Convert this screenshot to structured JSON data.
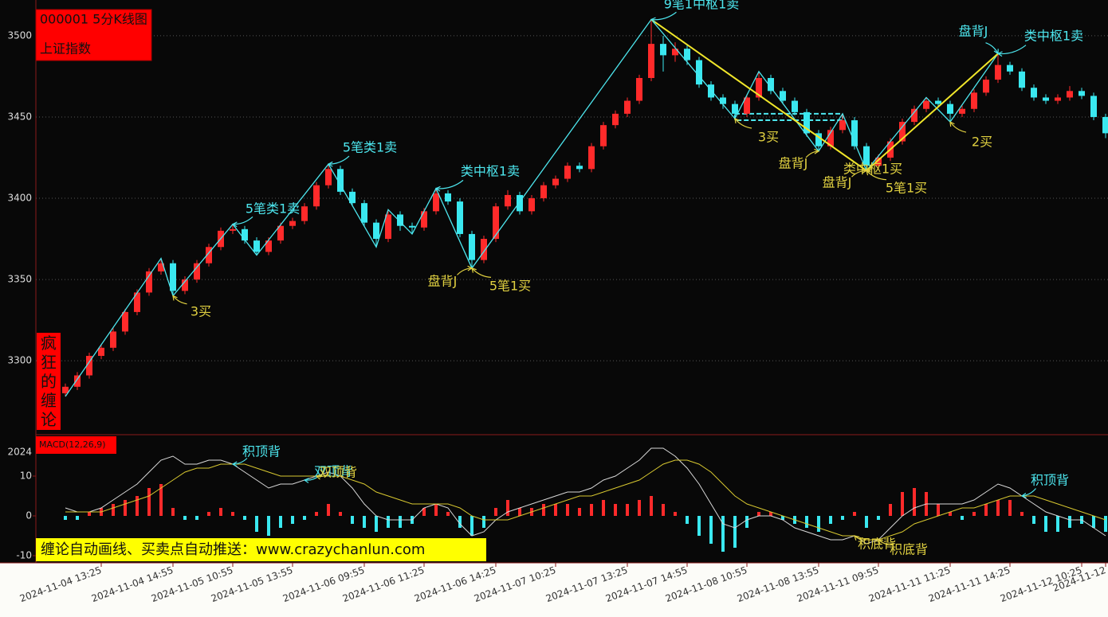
{
  "chart_data": [
    {
      "type": "candlestick",
      "title": "000001 5分K线图",
      "subtitle": "上证指数",
      "side_label": "疯狂的缠论",
      "categories": [
        null,
        null,
        null,
        "2024-11-04 13:25",
        null,
        null,
        null,
        null,
        null,
        "2024-11-04 14:55",
        null,
        null,
        null,
        null,
        "2024-11-05 10:55",
        null,
        null,
        null,
        null,
        "2024-11-05 13:55",
        null,
        null,
        null,
        null,
        null,
        "2024-11-06 09:55",
        null,
        null,
        null,
        null,
        "2024-11-06 11:25",
        null,
        null,
        null,
        null,
        null,
        "2024-11-06 14:25",
        null,
        null,
        null,
        null,
        "2024-11-07 10:25",
        null,
        null,
        null,
        null,
        null,
        "2024-11-07 13:25",
        null,
        null,
        null,
        null,
        "2024-11-07 14:55",
        null,
        null,
        null,
        null,
        "2024-11-08 10:55",
        null,
        null,
        null,
        null,
        null,
        "2024-11-08 13:55",
        null,
        null,
        null,
        null,
        "2024-11-11 09:55",
        null,
        null,
        null,
        null,
        null,
        "2024-11-11 11:25",
        null,
        null,
        null,
        null,
        "2024-11-11 14:25",
        null,
        null,
        null,
        null,
        null,
        "2024-11-12 10:25",
        null,
        "2024-11-12"
      ],
      "open": [
        3280,
        3284,
        3291,
        3303,
        3308,
        3318,
        3330,
        3342,
        3355,
        3360,
        3343,
        3350,
        3360,
        3370,
        3380,
        3381,
        3374,
        3367,
        3374,
        3383,
        3386,
        3395,
        3408,
        3418,
        3404,
        3397,
        3385,
        3375,
        3390,
        3383,
        3382,
        3392,
        3403,
        3398,
        3378,
        3362,
        3375,
        3395,
        3402,
        3392,
        3400,
        3408,
        3412,
        3420,
        3418,
        3432,
        3445,
        3452,
        3460,
        3474,
        3495,
        3488,
        3492,
        3485,
        3470,
        3462,
        3458,
        3452,
        3462,
        3474,
        3466,
        3460,
        3453,
        3440,
        3432,
        3442,
        3448,
        3432,
        3420,
        3425,
        3435,
        3447,
        3455,
        3460,
        3458,
        3452,
        3455,
        3465,
        3473,
        3482,
        3478,
        3468,
        3462,
        3460,
        3462,
        3466,
        3463,
        3450
      ],
      "high": [
        3286,
        3293,
        3305,
        3310,
        3320,
        3332,
        3344,
        3357,
        3363,
        3362,
        3352,
        3362,
        3372,
        3382,
        3384,
        3383,
        3376,
        3376,
        3385,
        3388,
        3397,
        3410,
        3421,
        3420,
        3406,
        3399,
        3387,
        3393,
        3392,
        3385,
        3394,
        3406,
        3405,
        3400,
        3380,
        3377,
        3397,
        3405,
        3404,
        3402,
        3410,
        3414,
        3422,
        3422,
        3434,
        3447,
        3454,
        3462,
        3476,
        3510,
        3500,
        3496,
        3494,
        3487,
        3472,
        3464,
        3460,
        3464,
        3478,
        3476,
        3468,
        3462,
        3455,
        3442,
        3444,
        3452,
        3450,
        3434,
        3427,
        3437,
        3449,
        3457,
        3462,
        3462,
        3460,
        3457,
        3467,
        3475,
        3489,
        3484,
        3480,
        3470,
        3464,
        3464,
        3469,
        3468,
        3465,
        3452
      ],
      "low": [
        3278,
        3282,
        3289,
        3301,
        3306,
        3316,
        3328,
        3340,
        3353,
        3340,
        3341,
        3348,
        3358,
        3368,
        3378,
        3372,
        3365,
        3365,
        3372,
        3381,
        3384,
        3393,
        3406,
        3402,
        3395,
        3383,
        3370,
        3373,
        3380,
        3378,
        3380,
        3390,
        3396,
        3376,
        3357,
        3360,
        3373,
        3393,
        3390,
        3390,
        3398,
        3406,
        3410,
        3416,
        3416,
        3430,
        3443,
        3450,
        3458,
        3472,
        3478,
        3484,
        3482,
        3468,
        3460,
        3455,
        3449,
        3450,
        3460,
        3464,
        3458,
        3451,
        3438,
        3429,
        3430,
        3440,
        3430,
        3417,
        3418,
        3423,
        3433,
        3445,
        3453,
        3456,
        3447,
        3450,
        3453,
        3463,
        3471,
        3476,
        3466,
        3460,
        3458,
        3458,
        3460,
        3461,
        3448,
        3437
      ],
      "close": [
        3284,
        3291,
        3303,
        3308,
        3318,
        3330,
        3342,
        3355,
        3360,
        3343,
        3350,
        3360,
        3370,
        3380,
        3381,
        3374,
        3367,
        3374,
        3383,
        3386,
        3395,
        3408,
        3418,
        3404,
        3397,
        3385,
        3375,
        3390,
        3383,
        3382,
        3392,
        3403,
        3398,
        3378,
        3362,
        3375,
        3395,
        3402,
        3392,
        3400,
        3408,
        3412,
        3420,
        3418,
        3432,
        3445,
        3452,
        3460,
        3474,
        3495,
        3488,
        3492,
        3485,
        3470,
        3462,
        3458,
        3452,
        3462,
        3474,
        3466,
        3460,
        3453,
        3440,
        3432,
        3442,
        3448,
        3432,
        3420,
        3425,
        3435,
        3447,
        3455,
        3460,
        3458,
        3452,
        3455,
        3465,
        3473,
        3482,
        3478,
        3468,
        3462,
        3460,
        3462,
        3466,
        3463,
        3450,
        3440
      ],
      "up_color": "#ff2a2a",
      "down_color": "#3ae8f0",
      "ylim": [
        3255,
        3522
      ],
      "yticks": [
        3300,
        3350,
        3400,
        3450,
        3500
      ],
      "grid": true,
      "bi": {
        "color": "#4de6ee",
        "index": [
          0,
          8,
          9,
          14,
          16,
          22,
          26,
          27,
          29,
          31,
          34,
          49,
          56,
          58,
          63,
          65,
          67,
          72,
          74,
          78
        ],
        "price": [
          3278,
          3363,
          3340,
          3384,
          3365,
          3421,
          3370,
          3393,
          3378,
          3406,
          3357,
          3510,
          3449,
          3478,
          3429,
          3452,
          3417,
          3462,
          3447,
          3489
        ]
      },
      "segments": {
        "color": "#f0e62a",
        "index": [
          49,
          67,
          78
        ],
        "price": [
          3510,
          3417,
          3489
        ]
      },
      "zhongshu": {
        "color": "#4de6ee",
        "start": 56,
        "end": 65,
        "high": 3452,
        "low": 3448
      },
      "annotations": [
        {
          "text": "3买",
          "index": 9,
          "price": 3340,
          "color": "#e0d040"
        },
        {
          "text": "5笔类1卖",
          "index": 14,
          "price": 3384,
          "color": "#4de6ee"
        },
        {
          "text": "5笔类1卖",
          "index": 22,
          "price": 3421,
          "color": "#4de6ee"
        },
        {
          "text": "类中枢1卖",
          "index": 31,
          "price": 3406,
          "color": "#4de6ee"
        },
        {
          "text": "盘背J",
          "index": 34,
          "price": 3357,
          "color": "#e0d040"
        },
        {
          "text": "5笔1买",
          "index": 34,
          "price": 3357,
          "color": "#e0d040"
        },
        {
          "text": "9笔1中枢1卖",
          "index": 49,
          "price": 3510,
          "color": "#4de6ee"
        },
        {
          "text": "3买",
          "index": 56,
          "price": 3449,
          "color": "#e0d040"
        },
        {
          "text": "盘背J",
          "index": 63,
          "price": 3429,
          "color": "#e0d040"
        },
        {
          "text": "盘背J",
          "index": 67,
          "price": 3417,
          "color": "#e0d040"
        },
        {
          "text": "类中枢1买",
          "index": 67,
          "price": 3417,
          "color": "#e0d040"
        },
        {
          "text": "5笔1买",
          "index": 67,
          "price": 3417,
          "color": "#e0d040"
        },
        {
          "text": "盘背J",
          "index": 78,
          "price": 3489,
          "color": "#4de6ee"
        },
        {
          "text": "类中枢1卖",
          "index": 78,
          "price": 3489,
          "color": "#4de6ee"
        },
        {
          "text": "2买",
          "index": 74,
          "price": 3447,
          "color": "#e0d040"
        }
      ]
    },
    {
      "type": "macd",
      "title": "MACD(12,26,9)",
      "year_label": "2024",
      "banner": "缠论自动画线、买卖点自动推送：www.crazychanlun.com",
      "values": [
        -1,
        -1,
        1,
        2,
        3,
        4,
        5,
        7,
        8,
        2,
        -1,
        -1,
        1,
        2,
        1,
        -1,
        -4,
        -5,
        -3,
        -2,
        -1,
        1,
        3,
        1,
        -2,
        -3,
        -4,
        -3,
        -3,
        -2,
        2,
        3,
        1,
        -3,
        -5,
        -3,
        2,
        4,
        2,
        2,
        3,
        3,
        3,
        2,
        3,
        4,
        3,
        3,
        4,
        5,
        3,
        1,
        -2,
        -5,
        -7,
        -9,
        -8,
        -3,
        1,
        1,
        -1,
        -2,
        -3,
        -4,
        -2,
        -1,
        1,
        -3,
        -1,
        3,
        6,
        7,
        6,
        3,
        1,
        -1,
        1,
        3,
        4,
        4,
        1,
        -2,
        -4,
        -4,
        -3,
        -2,
        -3,
        -4
      ],
      "up_color": "#ff2a2a",
      "down_color": "#3ae8f0",
      "series": [
        {
          "color": "#d8d8d8",
          "values": [
            2,
            1,
            1,
            2,
            4,
            6,
            8,
            11,
            14,
            15,
            13,
            13,
            14,
            14,
            13,
            11,
            9,
            7,
            8,
            8,
            9,
            10,
            11,
            10,
            7,
            3,
            0,
            -1,
            -1,
            -1,
            2,
            3,
            2,
            -2,
            -5,
            -4,
            -1,
            1,
            2,
            3,
            4,
            5,
            6,
            6,
            7,
            9,
            10,
            12,
            14,
            17,
            17,
            15,
            12,
            8,
            3,
            -2,
            -3,
            -1,
            0,
            0,
            -1,
            -3,
            -4,
            -5,
            -6,
            -6,
            -5,
            -7,
            -6,
            -3,
            0,
            2,
            3,
            3,
            3,
            3,
            4,
            6,
            8,
            7,
            5,
            3,
            1,
            0,
            -1,
            -1,
            -3,
            -5
          ]
        },
        {
          "color": "#d8c830",
          "values": [
            1,
            1,
            1,
            1,
            2,
            3,
            4,
            5,
            7,
            9,
            11,
            12,
            12,
            13,
            13,
            13,
            12,
            11,
            10,
            10,
            10,
            10,
            10,
            10,
            9,
            8,
            6,
            5,
            4,
            3,
            3,
            3,
            3,
            2,
            0,
            -1,
            -1,
            -1,
            0,
            1,
            2,
            3,
            4,
            5,
            5,
            6,
            7,
            8,
            9,
            11,
            13,
            14,
            14,
            13,
            11,
            8,
            5,
            3,
            2,
            1,
            0,
            -1,
            -2,
            -3,
            -4,
            -5,
            -5,
            -6,
            -6,
            -5,
            -4,
            -2,
            -1,
            0,
            1,
            2,
            2,
            3,
            4,
            5,
            5,
            5,
            4,
            3,
            2,
            1,
            0,
            -1
          ]
        }
      ],
      "ylim": [
        -11.8,
        20
      ],
      "yticks": [
        10,
        0,
        -10
      ],
      "annotations": [
        {
          "text": "积顶背",
          "index": 14,
          "value": 13,
          "color": "#4de6ee"
        },
        {
          "text": "双顶背",
          "index": 20,
          "value": 9,
          "color": "#4de6ee"
        },
        {
          "text": "双顶背",
          "index": 21,
          "value": 10,
          "color": "#e0d040"
        },
        {
          "text": "积底背",
          "index": 66,
          "value": -5,
          "color": "#e0d040"
        },
        {
          "text": "积底背",
          "index": 68,
          "value": -6,
          "color": "#e0d040"
        },
        {
          "text": "积顶背",
          "index": 80,
          "value": 5,
          "color": "#4de6ee"
        }
      ]
    }
  ]
}
